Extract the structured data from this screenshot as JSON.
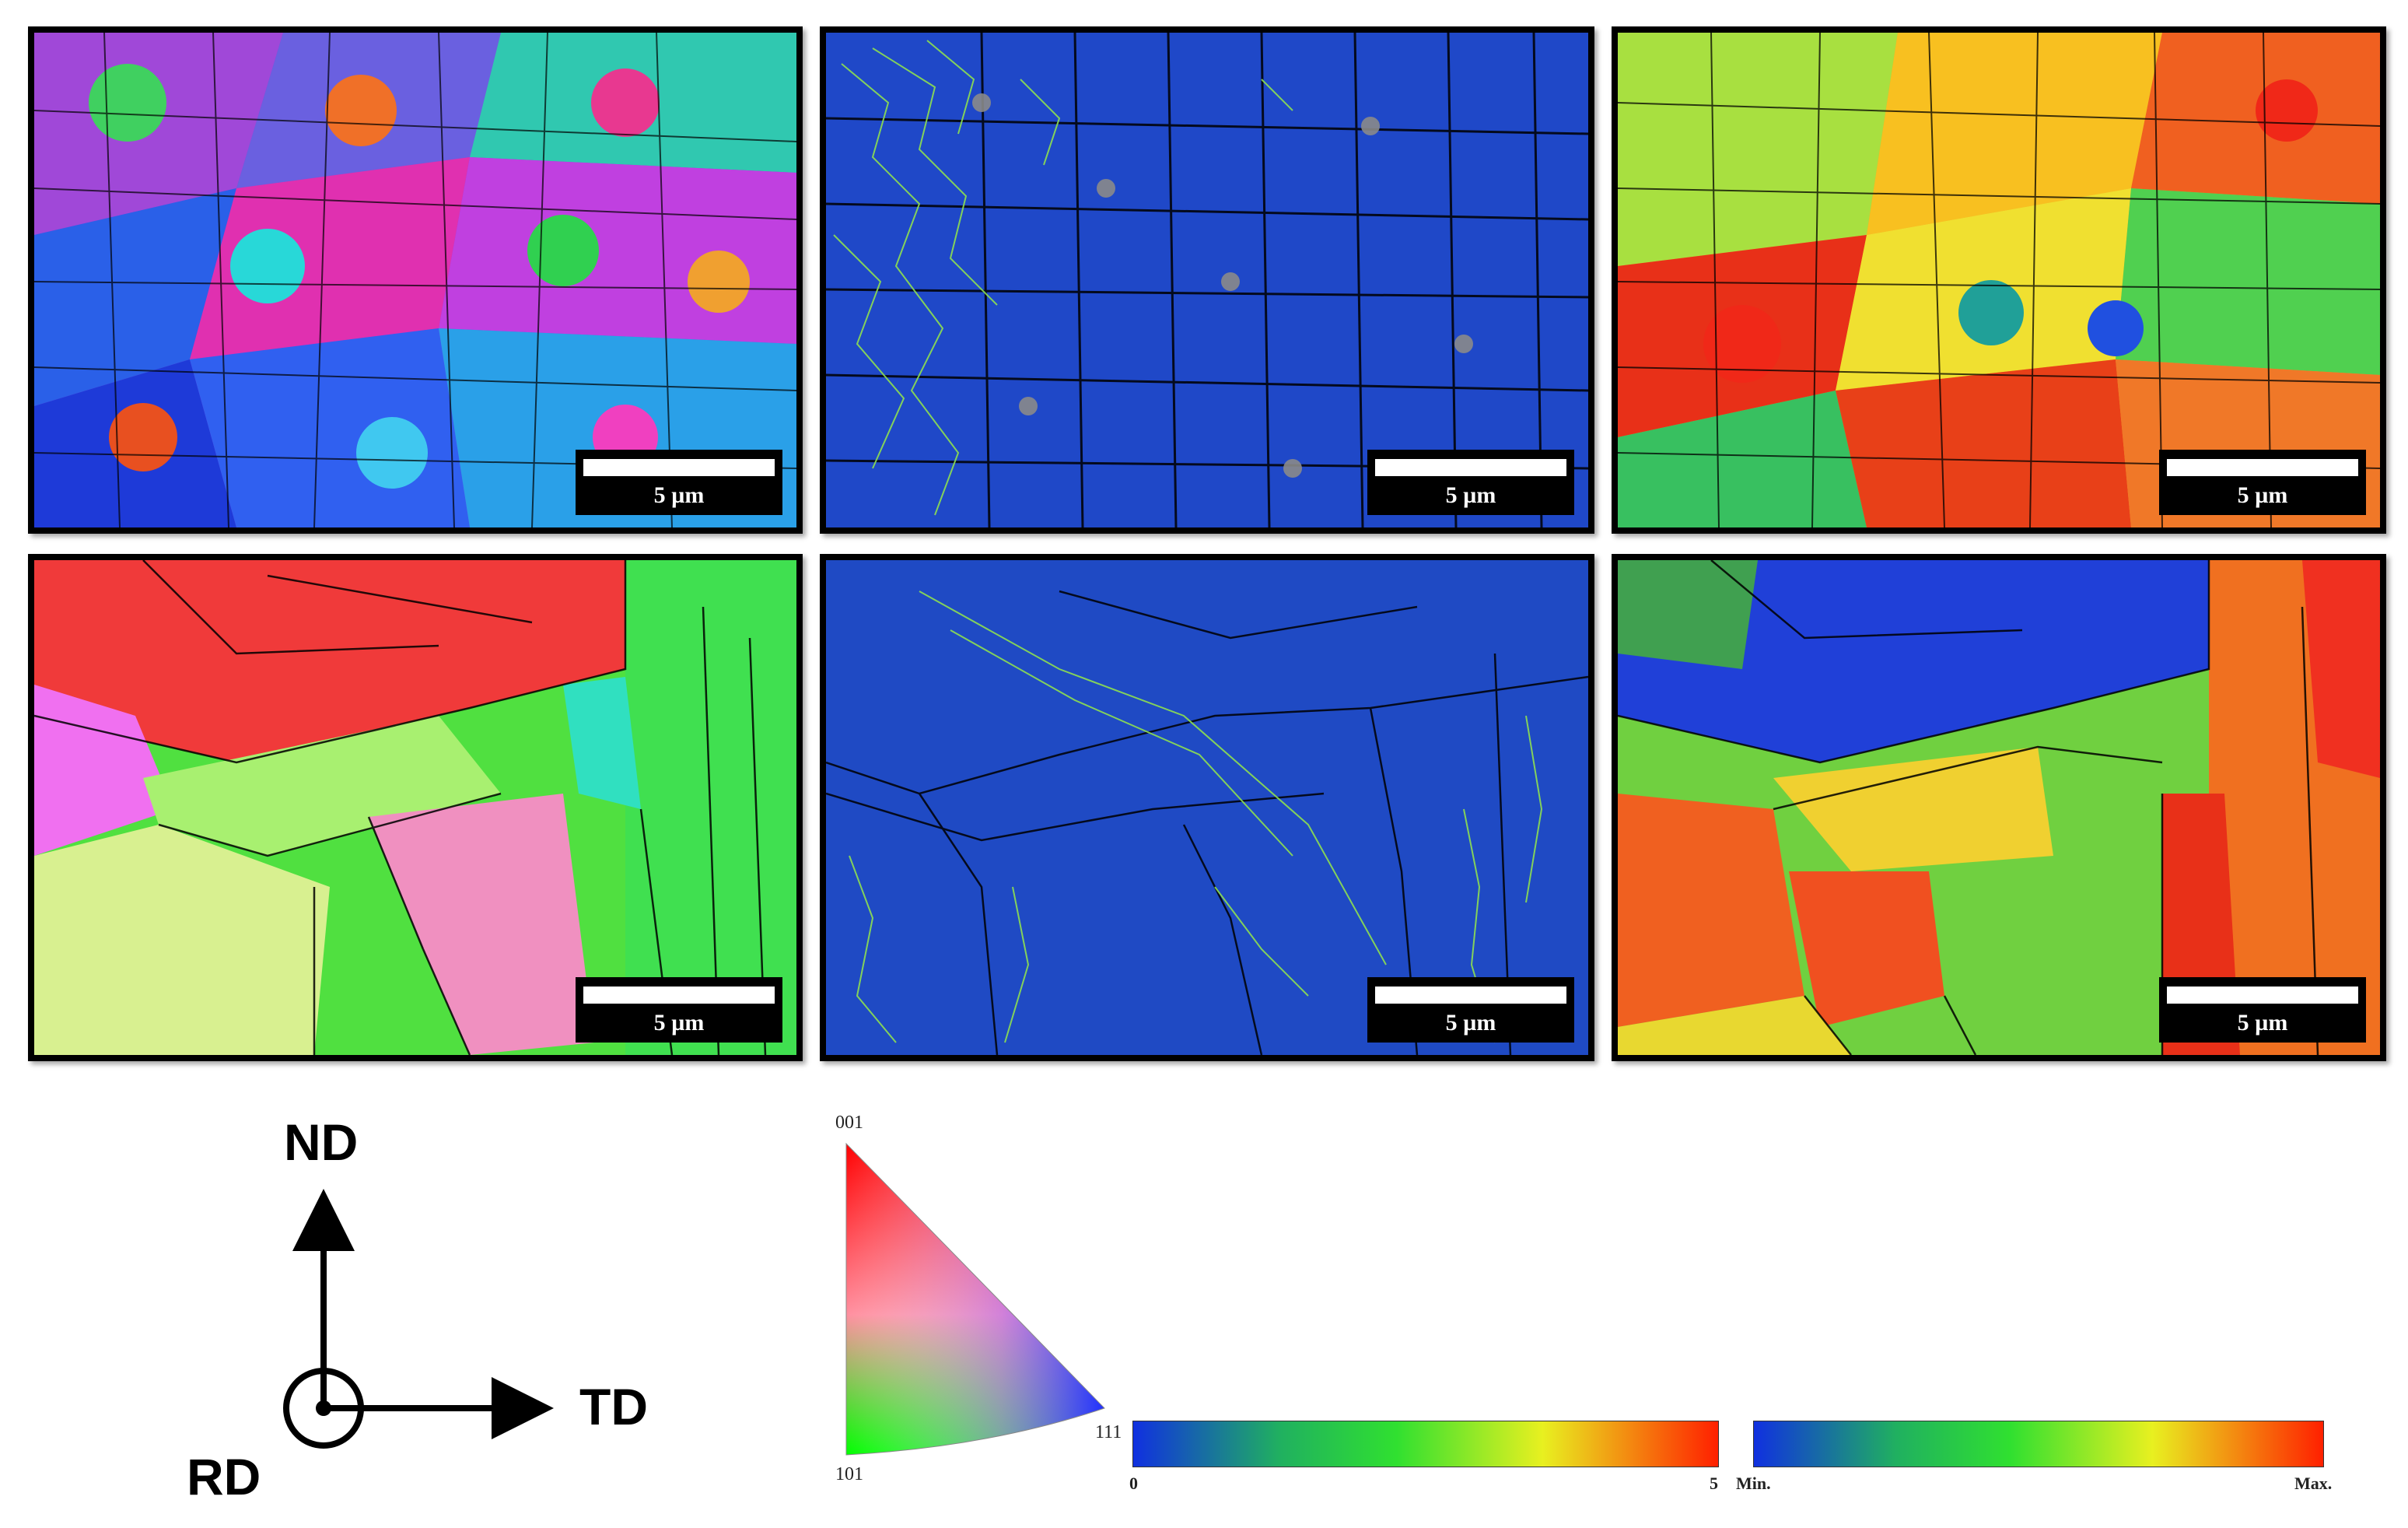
{
  "scale_bar": {
    "label": "5 µm"
  },
  "panels": [
    {
      "id": "top-left",
      "map": "orientation-ipf"
    },
    {
      "id": "top-middle",
      "map": "kernel-misorientation"
    },
    {
      "id": "top-right",
      "map": "scalar-heatmap"
    },
    {
      "id": "bottom-left",
      "map": "orientation-ipf"
    },
    {
      "id": "bottom-middle",
      "map": "kernel-misorientation"
    },
    {
      "id": "bottom-right",
      "map": "scalar-heatmap"
    }
  ],
  "axes": {
    "nd": "ND",
    "td": "TD",
    "rd": "RD"
  },
  "ipf_legend": {
    "top": "001",
    "bottom_left": "101",
    "bottom_right": "111"
  },
  "colorbar_1": {
    "min_label": "0",
    "max_label": "5"
  },
  "colorbar_2": {
    "min_label": "Min.",
    "max_label": "Max."
  },
  "colors": {
    "kam_background": "#1f48c8",
    "grain_boundary": "#000000",
    "unindexed": "#7a7a7a"
  }
}
